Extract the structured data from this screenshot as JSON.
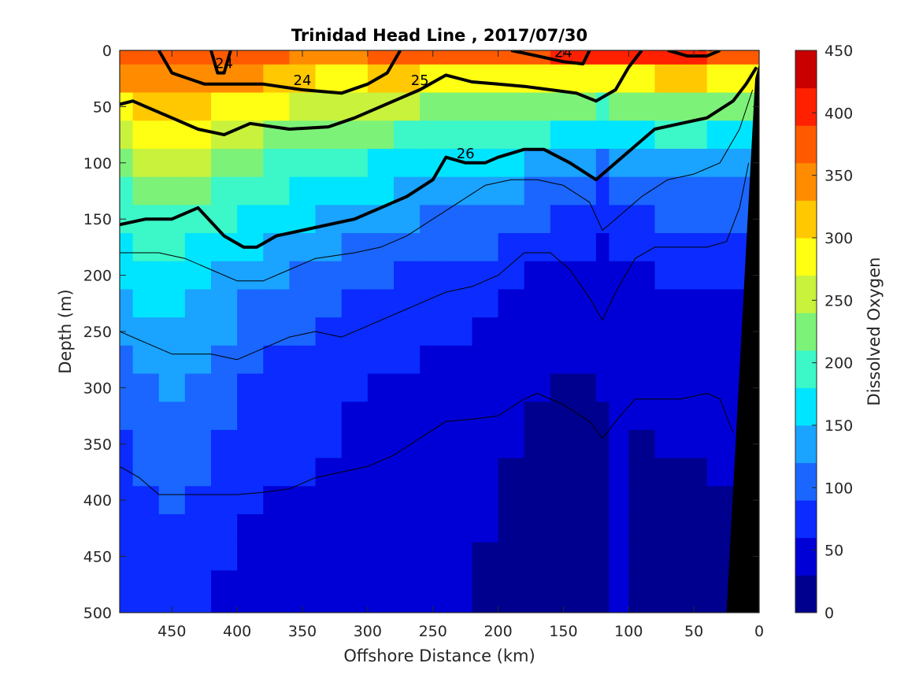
{
  "chart_data": {
    "type": "heatmap",
    "title": "Trinidad Head Line , 2017/07/30",
    "xlabel": "Offshore Distance (km)",
    "ylabel": "Depth (m)",
    "colorbar_label": "Dissolved Oxygen",
    "xlim": [
      490,
      0
    ],
    "ylim": [
      0,
      500
    ],
    "x_ticks": [
      450,
      400,
      350,
      300,
      250,
      200,
      150,
      100,
      50,
      0
    ],
    "y_ticks": [
      0,
      50,
      100,
      150,
      200,
      250,
      300,
      350,
      400,
      450,
      500
    ],
    "colorbar_ticks": [
      0,
      50,
      100,
      150,
      200,
      250,
      300,
      350,
      400,
      450
    ],
    "colorbar_range": [
      0,
      450
    ],
    "colormap": [
      "#00008f",
      "#0000d6",
      "#0b2bff",
      "#1a66ff",
      "#1aa3ff",
      "#00e5ff",
      "#3cf7c8",
      "#7df278",
      "#c8f23c",
      "#ffff14",
      "#ffc800",
      "#ff8c00",
      "#ff5a00",
      "#ff2000",
      "#c80000"
    ],
    "oxygen_field": {
      "x": [
        490,
        470,
        450,
        430,
        410,
        390,
        370,
        350,
        330,
        310,
        290,
        270,
        250,
        230,
        210,
        190,
        170,
        150,
        130,
        120,
        110,
        90,
        70,
        50,
        30
      ],
      "depth": [
        0,
        25,
        50,
        75,
        100,
        125,
        150,
        175,
        200,
        225,
        250,
        275,
        300,
        325,
        350,
        375,
        400,
        425,
        450,
        475,
        500
      ],
      "surface_o2": [
        380,
        385,
        380,
        375,
        380,
        380,
        370,
        355,
        345,
        345,
        360,
        370,
        360,
        360,
        370,
        375,
        380,
        390,
        400,
        400,
        400,
        400,
        410,
        410,
        380
      ],
      "decay_scale": [
        180,
        200,
        210,
        200,
        180,
        160,
        150,
        150,
        140,
        135,
        125,
        115,
        110,
        105,
        105,
        100,
        95,
        90,
        80,
        70,
        75,
        80,
        85,
        85,
        90
      ],
      "bottom_o2": [
        40,
        40,
        40,
        40,
        35,
        35,
        35,
        35,
        35,
        30,
        30,
        30,
        30,
        30,
        25,
        20,
        15,
        15,
        20,
        25,
        30,
        25,
        25,
        25,
        25
      ]
    },
    "sigma_contours": [
      {
        "label": "24",
        "bold": true,
        "points": [
          [
            460,
            0
          ],
          [
            450,
            20
          ],
          [
            425,
            30
          ],
          [
            400,
            30
          ],
          [
            380,
            30
          ],
          [
            350,
            35
          ],
          [
            320,
            38
          ],
          [
            300,
            30
          ],
          [
            285,
            20
          ],
          [
            275,
            0
          ]
        ]
      },
      {
        "label": "24",
        "bold": true,
        "points": [
          [
            190,
            0
          ],
          [
            170,
            5
          ],
          [
            150,
            10
          ],
          [
            135,
            12
          ],
          [
            130,
            0
          ]
        ]
      },
      {
        "label": "24",
        "bold": true,
        "points": [
          [
            420,
            0
          ],
          [
            415,
            20
          ],
          [
            410,
            20
          ],
          [
            405,
            0
          ]
        ]
      },
      {
        "label": "25",
        "bold": true,
        "points": [
          [
            490,
            48
          ],
          [
            480,
            45
          ],
          [
            470,
            50
          ],
          [
            450,
            60
          ],
          [
            430,
            70
          ],
          [
            410,
            75
          ],
          [
            390,
            65
          ],
          [
            360,
            70
          ],
          [
            330,
            68
          ],
          [
            310,
            60
          ],
          [
            290,
            50
          ],
          [
            260,
            35
          ],
          [
            240,
            22
          ],
          [
            220,
            28
          ],
          [
            200,
            30
          ],
          [
            180,
            32
          ],
          [
            160,
            35
          ],
          [
            140,
            38
          ],
          [
            125,
            45
          ],
          [
            110,
            35
          ],
          [
            100,
            15
          ],
          [
            90,
            0
          ]
        ]
      },
      {
        "label": "25",
        "bold": true,
        "points": [
          [
            70,
            0
          ],
          [
            55,
            5
          ],
          [
            40,
            5
          ],
          [
            30,
            0
          ]
        ]
      },
      {
        "label": "26",
        "bold": true,
        "points": [
          [
            490,
            155
          ],
          [
            470,
            150
          ],
          [
            450,
            150
          ],
          [
            430,
            140
          ],
          [
            410,
            165
          ],
          [
            395,
            175
          ],
          [
            385,
            175
          ],
          [
            370,
            165
          ],
          [
            350,
            160
          ],
          [
            330,
            155
          ],
          [
            310,
            150
          ],
          [
            290,
            140
          ],
          [
            270,
            130
          ],
          [
            250,
            115
          ],
          [
            240,
            95
          ],
          [
            225,
            100
          ],
          [
            210,
            100
          ],
          [
            200,
            95
          ],
          [
            180,
            88
          ],
          [
            165,
            88
          ],
          [
            145,
            100
          ],
          [
            125,
            115
          ],
          [
            110,
            100
          ],
          [
            95,
            85
          ],
          [
            80,
            70
          ],
          [
            60,
            65
          ],
          [
            40,
            60
          ],
          [
            20,
            45
          ],
          [
            10,
            30
          ],
          [
            2,
            15
          ]
        ]
      },
      {
        "label": "",
        "bold": false,
        "points": [
          [
            490,
            180
          ],
          [
            460,
            180
          ],
          [
            440,
            185
          ],
          [
            420,
            195
          ],
          [
            400,
            205
          ],
          [
            380,
            205
          ],
          [
            360,
            195
          ],
          [
            340,
            185
          ],
          [
            310,
            180
          ],
          [
            290,
            175
          ],
          [
            270,
            165
          ],
          [
            250,
            150
          ],
          [
            230,
            135
          ],
          [
            210,
            120
          ],
          [
            190,
            115
          ],
          [
            170,
            115
          ],
          [
            150,
            120
          ],
          [
            130,
            135
          ],
          [
            120,
            160
          ],
          [
            105,
            145
          ],
          [
            90,
            130
          ],
          [
            70,
            115
          ],
          [
            50,
            110
          ],
          [
            30,
            100
          ],
          [
            15,
            70
          ],
          [
            5,
            35
          ]
        ]
      },
      {
        "label": "",
        "bold": false,
        "points": [
          [
            490,
            250
          ],
          [
            470,
            260
          ],
          [
            450,
            270
          ],
          [
            420,
            270
          ],
          [
            400,
            275
          ],
          [
            380,
            265
          ],
          [
            360,
            255
          ],
          [
            340,
            250
          ],
          [
            320,
            255
          ],
          [
            300,
            245
          ],
          [
            280,
            235
          ],
          [
            260,
            225
          ],
          [
            240,
            215
          ],
          [
            220,
            210
          ],
          [
            200,
            200
          ],
          [
            180,
            180
          ],
          [
            160,
            180
          ],
          [
            145,
            195
          ],
          [
            130,
            220
          ],
          [
            120,
            240
          ],
          [
            110,
            215
          ],
          [
            95,
            185
          ],
          [
            80,
            175
          ],
          [
            60,
            175
          ],
          [
            40,
            175
          ],
          [
            25,
            170
          ],
          [
            15,
            140
          ],
          [
            8,
            100
          ]
        ]
      },
      {
        "label": "",
        "bold": false,
        "points": [
          [
            490,
            370
          ],
          [
            475,
            380
          ],
          [
            460,
            395
          ],
          [
            440,
            395
          ],
          [
            420,
            395
          ],
          [
            400,
            395
          ],
          [
            380,
            393
          ],
          [
            360,
            390
          ],
          [
            340,
            380
          ],
          [
            320,
            375
          ],
          [
            300,
            370
          ],
          [
            280,
            360
          ],
          [
            260,
            345
          ],
          [
            240,
            330
          ],
          [
            220,
            328
          ],
          [
            200,
            325
          ],
          [
            180,
            310
          ],
          [
            170,
            305
          ],
          [
            150,
            315
          ],
          [
            130,
            330
          ],
          [
            120,
            345
          ],
          [
            110,
            330
          ],
          [
            95,
            310
          ],
          [
            80,
            310
          ],
          [
            60,
            310
          ],
          [
            40,
            305
          ],
          [
            30,
            310
          ],
          [
            20,
            340
          ]
        ]
      }
    ]
  }
}
